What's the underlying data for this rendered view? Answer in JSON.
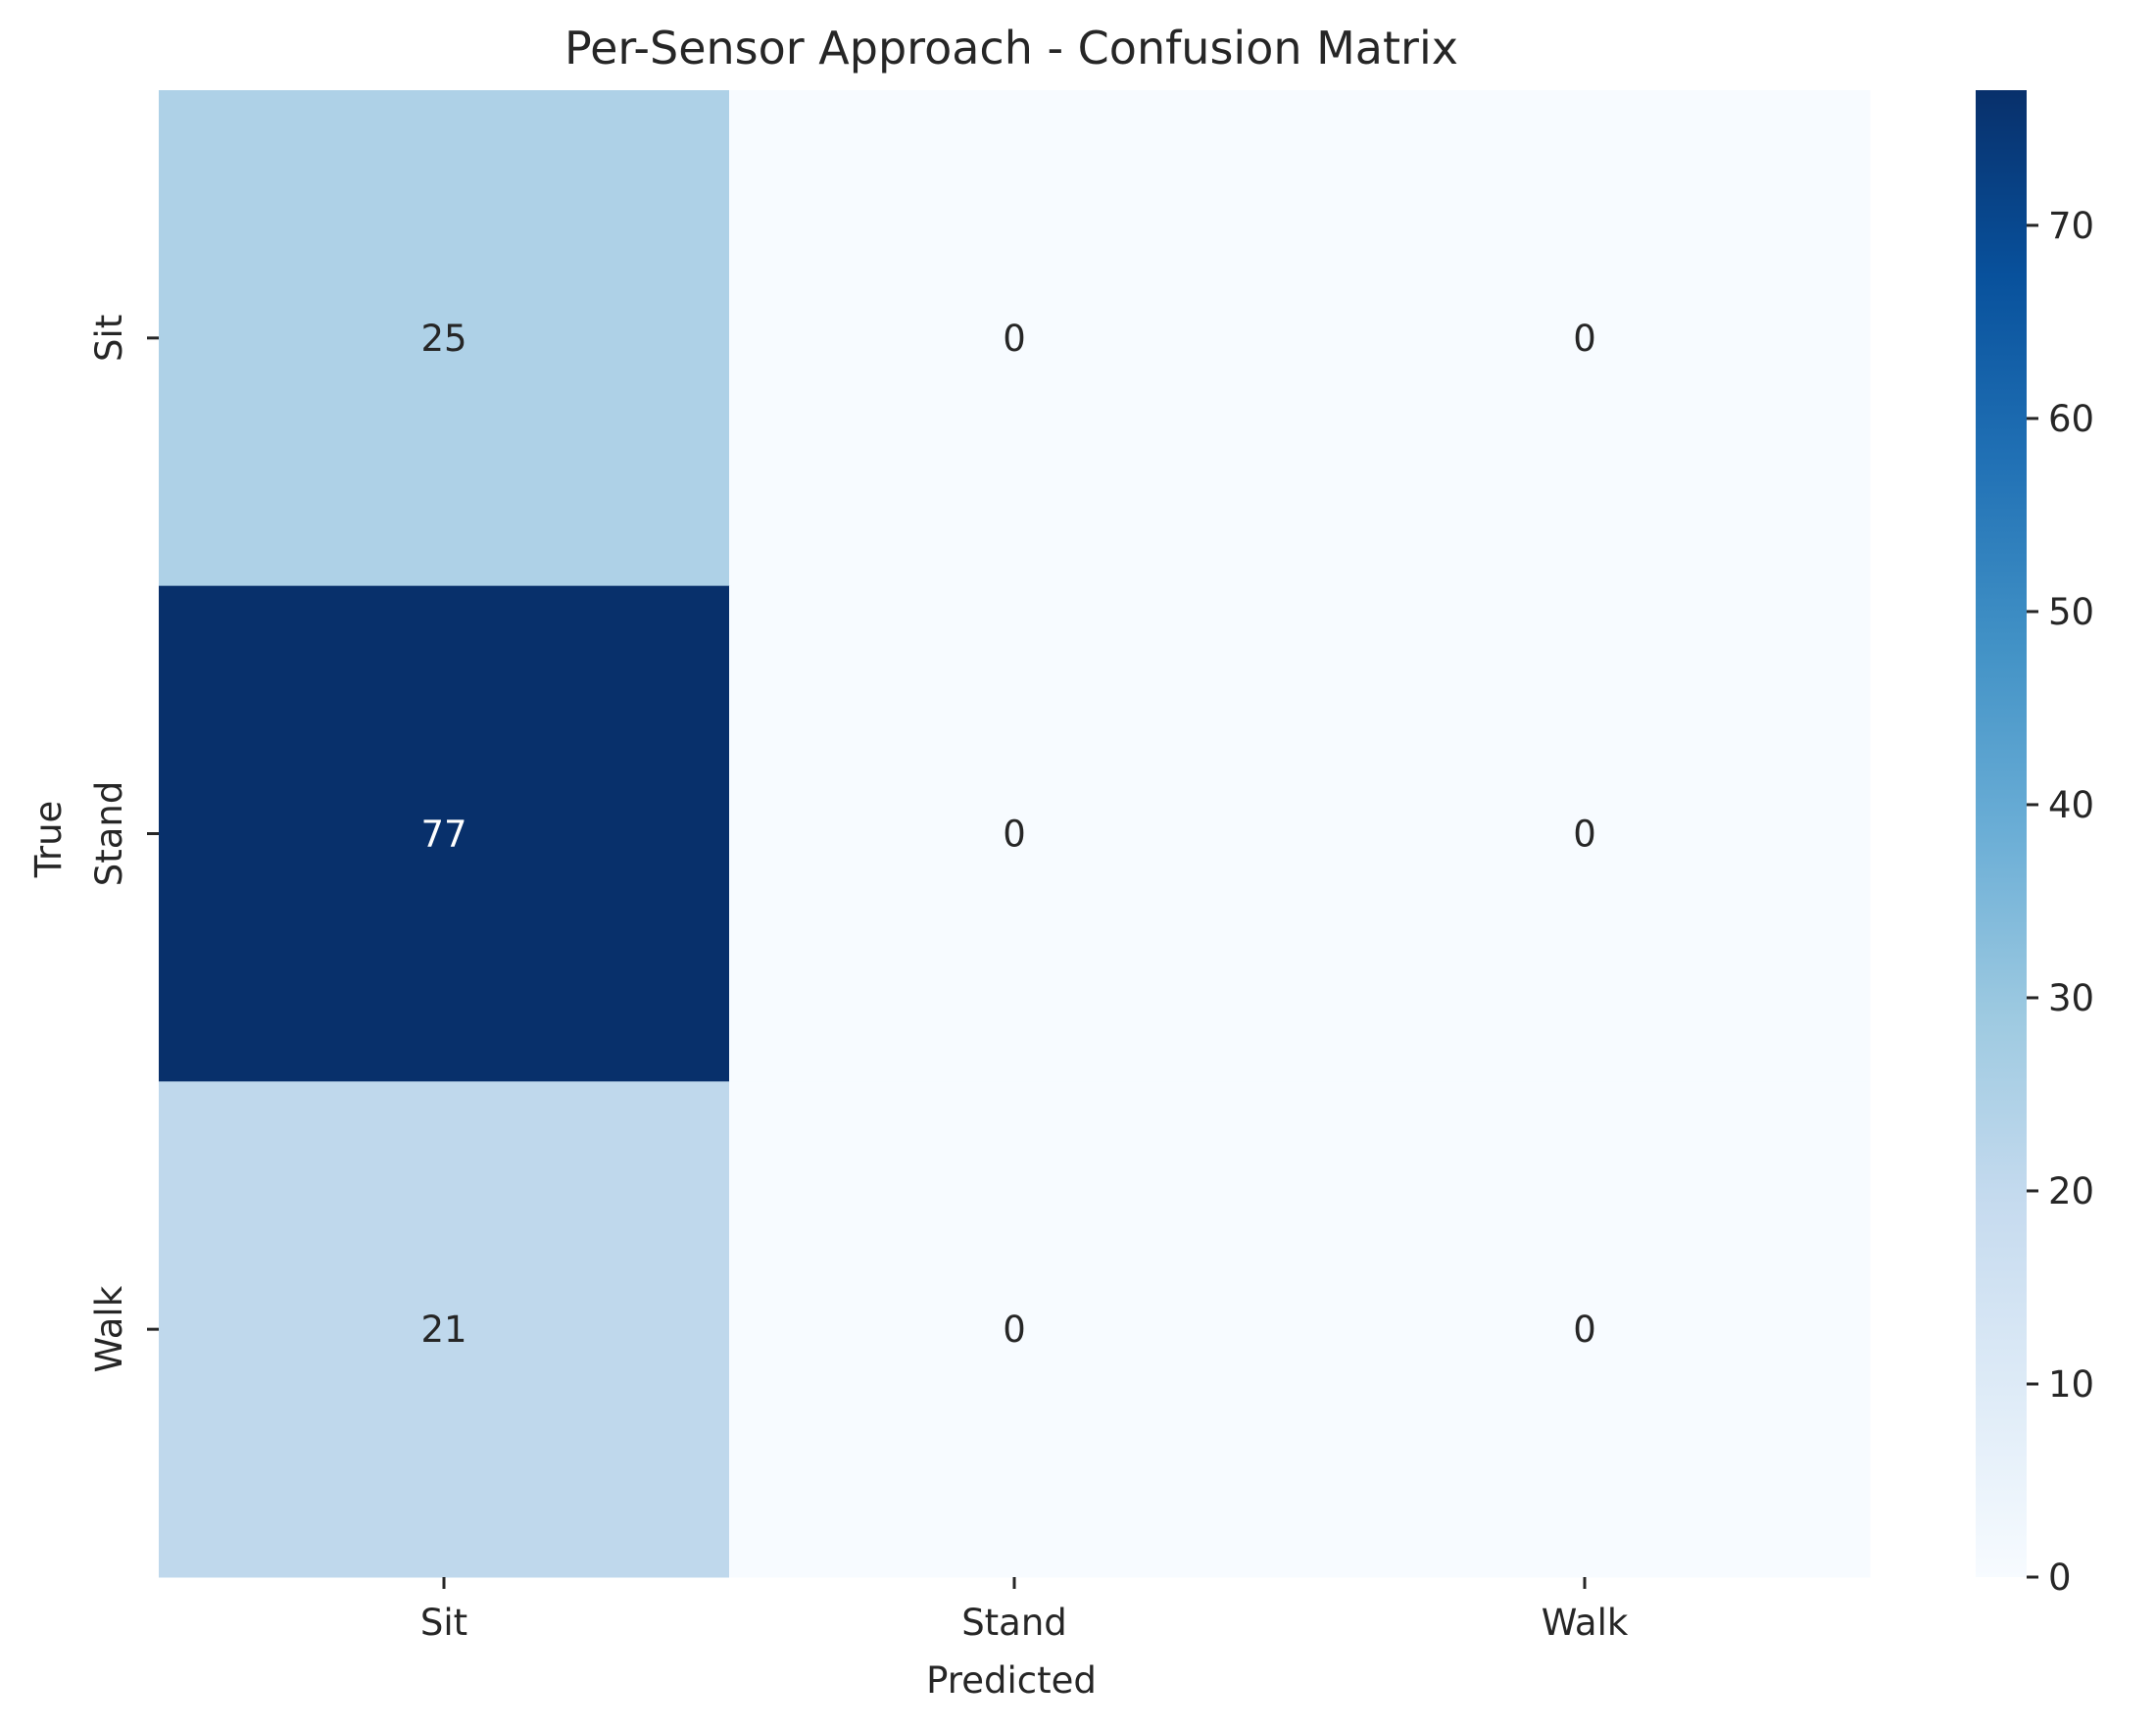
{
  "chart_data": {
    "type": "heatmap",
    "title": "Per-Sensor Approach - Confusion Matrix",
    "xlabel": "Predicted",
    "ylabel": "True",
    "x_categories": [
      "Sit",
      "Stand",
      "Walk"
    ],
    "y_categories": [
      "Sit",
      "Stand",
      "Walk"
    ],
    "matrix": [
      [
        25,
        0,
        0
      ],
      [
        77,
        0,
        0
      ],
      [
        21,
        0,
        0
      ]
    ],
    "colormap": "Blues",
    "color_range": [
      0,
      77
    ],
    "colorbar_ticks": [
      0,
      10,
      20,
      30,
      40,
      50,
      60,
      70
    ],
    "colors": {
      "min": "#f7fbff",
      "max": "#08306b",
      "dark_text": "#262626",
      "light_text": "#ffffff"
    }
  }
}
